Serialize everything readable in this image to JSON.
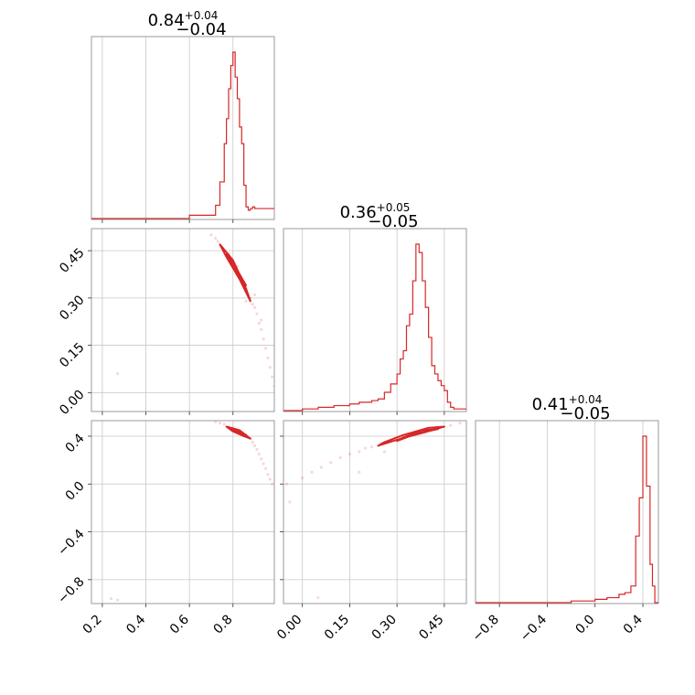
{
  "chart_data": {
    "type": "corner",
    "color": "#d62728",
    "parameters": [
      {
        "title": {
          "median": "0.84",
          "plus": "+0.04",
          "minus": "−0.04"
        },
        "range": [
          0.15,
          0.99
        ],
        "ticks": [
          0.2,
          0.4,
          0.6,
          0.8
        ],
        "tick_labels": [
          "0.2",
          "0.4",
          "0.6",
          "0.8"
        ],
        "hist_edges": [
          0.15,
          0.6,
          0.72,
          0.74,
          0.76,
          0.77,
          0.78,
          0.79,
          0.8,
          0.81,
          0.82,
          0.83,
          0.84,
          0.85,
          0.86,
          0.87,
          0.88,
          0.89,
          0.9,
          0.99
        ],
        "hist_counts": [
          0.0,
          0.02,
          0.08,
          0.22,
          0.45,
          0.6,
          0.78,
          0.92,
          1.0,
          0.85,
          0.72,
          0.55,
          0.45,
          0.2,
          0.07,
          0.05,
          0.06,
          0.07,
          0.06
        ]
      },
      {
        "title": {
          "median": "0.36",
          "plus": "+0.05",
          "minus": "−0.05"
        },
        "range": [
          -0.06,
          0.52
        ],
        "ticks": [
          0.0,
          0.15,
          0.3,
          0.45
        ],
        "tick_labels": [
          "0.00",
          "0.15",
          "0.30",
          "0.45"
        ],
        "hist_edges": [
          -0.06,
          0.0,
          0.05,
          0.1,
          0.15,
          0.18,
          0.2,
          0.22,
          0.24,
          0.26,
          0.28,
          0.3,
          0.31,
          0.32,
          0.33,
          0.34,
          0.35,
          0.36,
          0.37,
          0.38,
          0.39,
          0.4,
          0.41,
          0.42,
          0.43,
          0.44,
          0.45,
          0.46,
          0.47,
          0.48,
          0.52
        ],
        "hist_counts": [
          0.0,
          0.01,
          0.02,
          0.03,
          0.04,
          0.05,
          0.05,
          0.06,
          0.07,
          0.11,
          0.16,
          0.22,
          0.31,
          0.36,
          0.51,
          0.58,
          0.78,
          1.0,
          0.95,
          0.78,
          0.62,
          0.44,
          0.27,
          0.22,
          0.18,
          0.15,
          0.12,
          0.05,
          0.02,
          0.01
        ]
      },
      {
        "title": {
          "median": "0.41",
          "plus": "+0.04",
          "minus": "−0.05"
        },
        "range": [
          -1.0,
          0.53
        ],
        "ticks": [
          -0.8,
          -0.4,
          0.0,
          0.4
        ],
        "tick_labels": [
          "−0.8",
          "−0.4",
          "0.0",
          "0.4"
        ],
        "hist_edges": [
          -1.0,
          -0.2,
          0.0,
          0.1,
          0.2,
          0.25,
          0.3,
          0.34,
          0.37,
          0.4,
          0.43,
          0.46,
          0.48,
          0.5,
          0.53
        ],
        "hist_counts": [
          0.0,
          0.01,
          0.02,
          0.03,
          0.05,
          0.06,
          0.1,
          0.4,
          0.63,
          1.0,
          0.7,
          0.23,
          0.1,
          0.0
        ]
      }
    ],
    "panels_2d": [
      {
        "x_param": 0,
        "y_param": 1,
        "contours": [
          [
            [
              0.74,
              0.47
            ],
            [
              0.8,
              0.42
            ],
            [
              0.86,
              0.33
            ],
            [
              0.88,
              0.29
            ],
            [
              0.83,
              0.36
            ],
            [
              0.77,
              0.43
            ]
          ],
          [
            [
              0.77,
              0.44
            ],
            [
              0.81,
              0.4
            ],
            [
              0.86,
              0.34
            ],
            [
              0.84,
              0.35
            ],
            [
              0.79,
              0.41
            ]
          ],
          [
            [
              0.79,
              0.41
            ],
            [
              0.82,
              0.38
            ],
            [
              0.85,
              0.35
            ],
            [
              0.83,
              0.36
            ]
          ]
        ],
        "scatter": [
          [
            0.7,
            0.5
          ],
          [
            0.72,
            0.49
          ],
          [
            0.73,
            0.48
          ],
          [
            0.75,
            0.46
          ],
          [
            0.76,
            0.45
          ],
          [
            0.78,
            0.44
          ],
          [
            0.79,
            0.41
          ],
          [
            0.81,
            0.39
          ],
          [
            0.82,
            0.4
          ],
          [
            0.83,
            0.37
          ],
          [
            0.84,
            0.36
          ],
          [
            0.85,
            0.34
          ],
          [
            0.86,
            0.33
          ],
          [
            0.87,
            0.31
          ],
          [
            0.88,
            0.3
          ],
          [
            0.89,
            0.28
          ],
          [
            0.9,
            0.27
          ],
          [
            0.91,
            0.25
          ],
          [
            0.92,
            0.22
          ],
          [
            0.93,
            0.2
          ],
          [
            0.94,
            0.17
          ],
          [
            0.95,
            0.14
          ],
          [
            0.96,
            0.11
          ],
          [
            0.97,
            0.08
          ],
          [
            0.98,
            0.05
          ],
          [
            0.99,
            0.02
          ],
          [
            0.27,
            0.06
          ],
          [
            0.9,
            0.31
          ],
          [
            0.86,
            0.29
          ],
          [
            0.93,
            0.23
          ]
        ]
      },
      {
        "x_param": 0,
        "y_param": 2,
        "contours": [
          [
            [
              0.77,
              0.48
            ],
            [
              0.83,
              0.45
            ],
            [
              0.88,
              0.38
            ],
            [
              0.85,
              0.4
            ],
            [
              0.8,
              0.44
            ]
          ],
          [
            [
              0.79,
              0.46
            ],
            [
              0.84,
              0.43
            ],
            [
              0.86,
              0.41
            ],
            [
              0.82,
              0.43
            ]
          ],
          [
            [
              0.81,
              0.45
            ],
            [
              0.84,
              0.43
            ],
            [
              0.82,
              0.44
            ]
          ]
        ],
        "scatter": [
          [
            0.72,
            0.52
          ],
          [
            0.74,
            0.51
          ],
          [
            0.76,
            0.5
          ],
          [
            0.78,
            0.48
          ],
          [
            0.8,
            0.47
          ],
          [
            0.82,
            0.45
          ],
          [
            0.84,
            0.43
          ],
          [
            0.86,
            0.41
          ],
          [
            0.88,
            0.38
          ],
          [
            0.89,
            0.35
          ],
          [
            0.9,
            0.32
          ],
          [
            0.91,
            0.29
          ],
          [
            0.92,
            0.25
          ],
          [
            0.93,
            0.21
          ],
          [
            0.94,
            0.17
          ],
          [
            0.95,
            0.13
          ],
          [
            0.96,
            0.08
          ],
          [
            0.97,
            0.04
          ],
          [
            0.98,
            0.0
          ],
          [
            0.27,
            -0.97
          ],
          [
            0.24,
            -0.96
          ]
        ]
      },
      {
        "x_param": 1,
        "y_param": 2,
        "contours": [
          [
            [
              0.24,
              0.32
            ],
            [
              0.3,
              0.37
            ],
            [
              0.38,
              0.43
            ],
            [
              0.45,
              0.48
            ],
            [
              0.4,
              0.47
            ],
            [
              0.32,
              0.41
            ],
            [
              0.26,
              0.35
            ]
          ],
          [
            [
              0.3,
              0.36
            ],
            [
              0.36,
              0.42
            ],
            [
              0.43,
              0.46
            ],
            [
              0.38,
              0.45
            ],
            [
              0.32,
              0.39
            ]
          ],
          [
            [
              0.34,
              0.4
            ],
            [
              0.39,
              0.44
            ],
            [
              0.41,
              0.45
            ],
            [
              0.37,
              0.42
            ]
          ]
        ],
        "scatter": [
          [
            -0.05,
            0.0
          ],
          [
            0.0,
            0.05
          ],
          [
            0.03,
            0.1
          ],
          [
            0.06,
            0.14
          ],
          [
            0.09,
            0.18
          ],
          [
            0.12,
            0.22
          ],
          [
            0.15,
            0.25
          ],
          [
            0.18,
            0.27
          ],
          [
            0.2,
            0.3
          ],
          [
            0.22,
            0.31
          ],
          [
            0.25,
            0.34
          ],
          [
            0.28,
            0.36
          ],
          [
            0.31,
            0.38
          ],
          [
            0.35,
            0.41
          ],
          [
            0.39,
            0.43
          ],
          [
            0.43,
            0.46
          ],
          [
            0.47,
            0.49
          ],
          [
            0.5,
            0.51
          ],
          [
            0.05,
            -0.95
          ],
          [
            -0.04,
            -0.15
          ],
          [
            0.18,
            0.1
          ],
          [
            0.26,
            0.27
          ]
        ]
      }
    ]
  }
}
